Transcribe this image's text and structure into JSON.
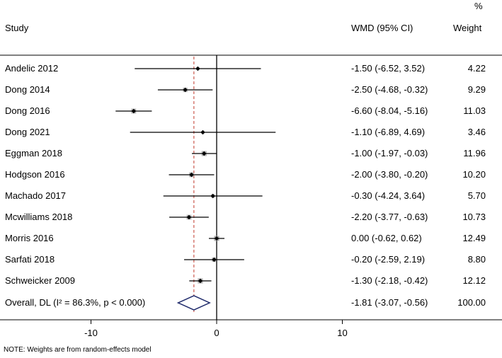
{
  "chart_data": {
    "type": "forest",
    "headers": {
      "study": "Study",
      "effect": "WMD (95% CI)",
      "weight_symbol": "%",
      "weight": "Weight"
    },
    "studies": [
      {
        "name": "Andelic 2012",
        "wmd": -1.5,
        "lo": -6.52,
        "hi": 3.52,
        "weight": 4.22,
        "ci_text": "-1.50 (-6.52, 3.52)",
        "weight_text": "4.22"
      },
      {
        "name": "Dong 2014",
        "wmd": -2.5,
        "lo": -4.68,
        "hi": -0.32,
        "weight": 9.29,
        "ci_text": "-2.50 (-4.68, -0.32)",
        "weight_text": "9.29"
      },
      {
        "name": "Dong 2016",
        "wmd": -6.6,
        "lo": -8.04,
        "hi": -5.16,
        "weight": 11.03,
        "ci_text": "-6.60 (-8.04, -5.16)",
        "weight_text": "11.03"
      },
      {
        "name": "Dong 2021",
        "wmd": -1.1,
        "lo": -6.89,
        "hi": 4.69,
        "weight": 3.46,
        "ci_text": "-1.10 (-6.89, 4.69)",
        "weight_text": "3.46"
      },
      {
        "name": "Eggman  2018",
        "wmd": -1.0,
        "lo": -1.97,
        "hi": -0.03,
        "weight": 11.96,
        "ci_text": "-1.00 (-1.97, -0.03)",
        "weight_text": "11.96"
      },
      {
        "name": "Hodgson 2016",
        "wmd": -2.0,
        "lo": -3.8,
        "hi": -0.2,
        "weight": 10.2,
        "ci_text": "-2.00 (-3.80, -0.20)",
        "weight_text": "10.20"
      },
      {
        "name": "Machado 2017",
        "wmd": -0.3,
        "lo": -4.24,
        "hi": 3.64,
        "weight": 5.7,
        "ci_text": "-0.30 (-4.24, 3.64)",
        "weight_text": "5.70"
      },
      {
        "name": "Mcwilliams 2018",
        "wmd": -2.2,
        "lo": -3.77,
        "hi": -0.63,
        "weight": 10.73,
        "ci_text": "-2.20 (-3.77, -0.63)",
        "weight_text": "10.73"
      },
      {
        "name": "Morris 2016",
        "wmd": 0.0,
        "lo": -0.62,
        "hi": 0.62,
        "weight": 12.49,
        "ci_text": "0.00 (-0.62, 0.62)",
        "weight_text": "12.49"
      },
      {
        "name": "Sarfati 2018",
        "wmd": -0.2,
        "lo": -2.59,
        "hi": 2.19,
        "weight": 8.8,
        "ci_text": "-0.20 (-2.59, 2.19)",
        "weight_text": "8.80"
      },
      {
        "name": "Schweicker 2009",
        "wmd": -1.3,
        "lo": -2.18,
        "hi": -0.42,
        "weight": 12.12,
        "ci_text": "-1.30 (-2.18, -0.42)",
        "weight_text": "12.12"
      }
    ],
    "overall": {
      "name": "Overall, DL (I² = 86.3%, p < 0.000)",
      "wmd": -1.81,
      "lo": -3.07,
      "hi": -0.56,
      "weight": 100.0,
      "ci_text": "-1.81 (-3.07, -0.56)",
      "weight_text": "100.00"
    },
    "x_axis": {
      "ticks": [
        -10,
        0,
        10
      ],
      "tick_labels": [
        "-10",
        "0",
        "10"
      ],
      "range": [
        -10.5,
        10.5
      ]
    },
    "null_line": 0,
    "colors": {
      "ci_line": "#000000",
      "weight_box": "#b3b3b3",
      "overall_diamond": "#1f2a6b",
      "pooled_line": "#c0392b"
    },
    "note": "NOTE: Weights are from random-effects model"
  }
}
